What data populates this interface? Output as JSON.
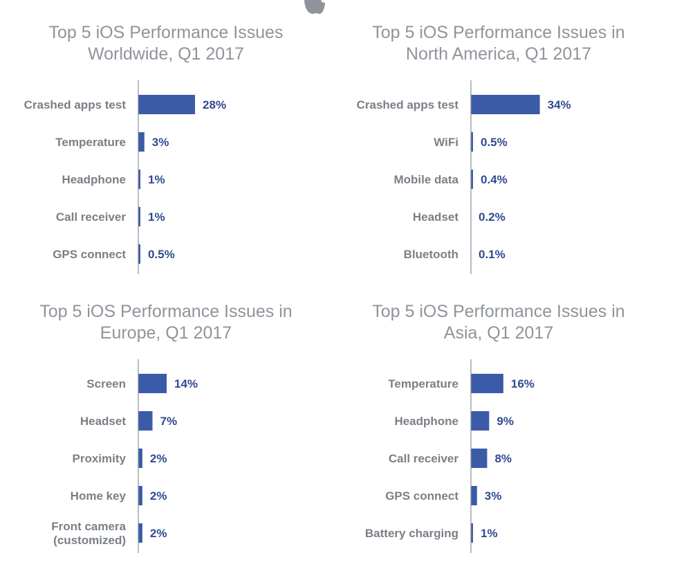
{
  "logo": {
    "icon": "apple-logo-icon",
    "color": "#8e949a"
  },
  "colors": {
    "bar": "#3b5ba9",
    "value_label": "#2f4a8f",
    "category_label": "#7a7f86",
    "title": "#8e949a"
  },
  "chart_data": [
    {
      "type": "bar",
      "orientation": "horizontal",
      "title_lines": [
        "Top 5 iOS Performance Issues",
        "Worldwide, Q1 2017"
      ],
      "categories": [
        [
          "Crashed apps test"
        ],
        [
          "Temperature"
        ],
        [
          "Headphone"
        ],
        [
          "Call receiver"
        ],
        [
          "GPS connect"
        ]
      ],
      "values": [
        28,
        3,
        1,
        1,
        0.5
      ],
      "labels": [
        "28%",
        "3%",
        "1%",
        "1%",
        "0.5%"
      ],
      "unit": "%"
    },
    {
      "type": "bar",
      "orientation": "horizontal",
      "title_lines": [
        "Top 5 iOS Performance Issues in",
        "North America, Q1 2017"
      ],
      "categories": [
        [
          "Crashed apps test"
        ],
        [
          "WiFi"
        ],
        [
          "Mobile data"
        ],
        [
          "Headset"
        ],
        [
          "Bluetooth"
        ]
      ],
      "values": [
        34,
        0.5,
        0.4,
        0.2,
        0.1
      ],
      "labels": [
        "34%",
        "0.5%",
        "0.4%",
        "0.2%",
        "0.1%"
      ],
      "unit": "%"
    },
    {
      "type": "bar",
      "orientation": "horizontal",
      "title_lines": [
        "Top 5 iOS Performance Issues in",
        "Europe, Q1 2017"
      ],
      "categories": [
        [
          "Screen"
        ],
        [
          "Headset"
        ],
        [
          "Proximity"
        ],
        [
          "Home key"
        ],
        [
          "Front camera",
          "(customized)"
        ]
      ],
      "values": [
        14,
        7,
        2,
        2,
        2
      ],
      "labels": [
        "14%",
        "7%",
        "2%",
        "2%",
        "2%"
      ],
      "unit": "%"
    },
    {
      "type": "bar",
      "orientation": "horizontal",
      "title_lines": [
        "Top 5 iOS Performance Issues in",
        "Asia, Q1 2017"
      ],
      "categories": [
        [
          "Temperature"
        ],
        [
          "Headphone"
        ],
        [
          "Call receiver"
        ],
        [
          "GPS connect"
        ],
        [
          "Battery charging"
        ]
      ],
      "values": [
        16,
        9,
        8,
        3,
        1
      ],
      "labels": [
        "16%",
        "9%",
        "8%",
        "3%",
        "1%"
      ],
      "unit": "%"
    }
  ]
}
